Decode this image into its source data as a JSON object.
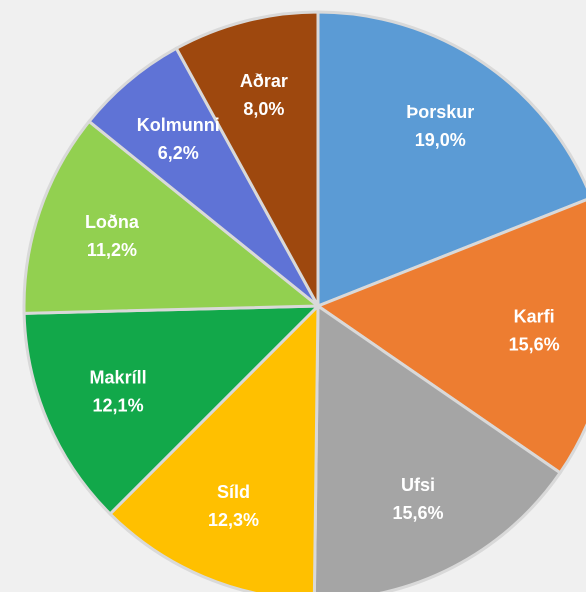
{
  "chart_data": {
    "type": "pie",
    "categories": [
      "Þorskur",
      "Karfi",
      "Ufsi",
      "Síld",
      "Makríll",
      "Loðna",
      "Kolmunni",
      "Aðrar"
    ],
    "values": [
      19.0,
      15.6,
      15.6,
      12.3,
      12.1,
      11.2,
      6.2,
      8.0
    ],
    "value_labels": [
      "19,0%",
      "15,6%",
      "15,6%",
      "12,3%",
      "12,1%",
      "11,2%",
      "6,2%",
      "8,0%"
    ],
    "colors": [
      "#5b9bd5",
      "#ed7d31",
      "#a5a5a5",
      "#ffc000",
      "#12a84a",
      "#92d050",
      "#5f73d6",
      "#9e480e"
    ]
  }
}
